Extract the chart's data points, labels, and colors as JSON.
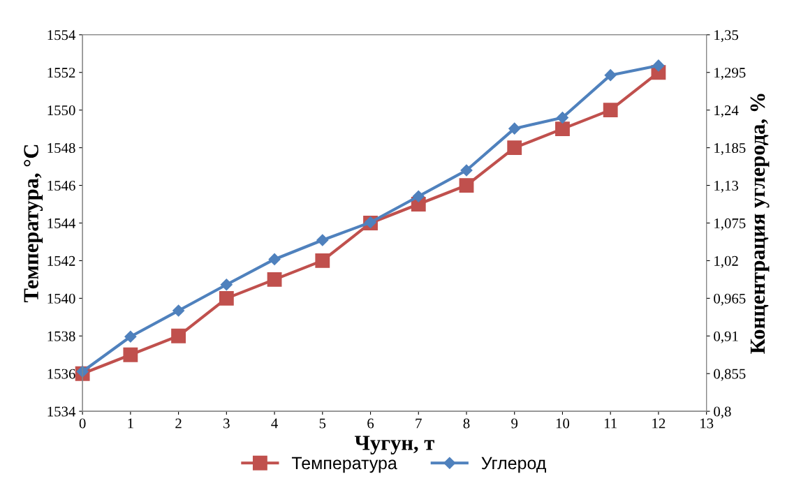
{
  "chart_data": {
    "type": "line",
    "xlabel": "Чугун, т",
    "ylabel": "Температура, °С",
    "y2label": "Концентрация углерода, %",
    "x": [
      0,
      1,
      2,
      3,
      4,
      5,
      6,
      7,
      8,
      9,
      10,
      11,
      12
    ],
    "series": [
      {
        "name": "Температура",
        "color": "#c0504d",
        "marker": "square",
        "values": [
          1536,
          1537,
          1538,
          1540,
          1541,
          1542,
          1544,
          1545,
          1546,
          1548,
          1549,
          1550,
          1552
        ]
      },
      {
        "name": "Углерод",
        "color": "#4f81bd",
        "marker": "diamond",
        "axis": "y2",
        "values": [
          0.858,
          0.909,
          0.947,
          0.985,
          1.022,
          1.05,
          1.076,
          1.114,
          1.152,
          1.213,
          1.229,
          1.291,
          1.305
        ]
      }
    ],
    "xlim": [
      0,
      13
    ],
    "xticks": [
      0,
      1,
      2,
      3,
      4,
      5,
      6,
      7,
      8,
      9,
      10,
      11,
      12,
      13
    ],
    "ylim": [
      1534,
      1554
    ],
    "yticks": [
      1534,
      1536,
      1538,
      1540,
      1542,
      1544,
      1546,
      1548,
      1550,
      1552,
      1554
    ],
    "y2lim": [
      0.8,
      1.35
    ],
    "y2ticks": [
      {
        "value": 0.8,
        "label": "0,8"
      },
      {
        "value": 0.855,
        "label": "0,855"
      },
      {
        "value": 0.91,
        "label": "0,91"
      },
      {
        "value": 0.965,
        "label": "0,965"
      },
      {
        "value": 1.02,
        "label": "1,02"
      },
      {
        "value": 1.075,
        "label": "1,075"
      },
      {
        "value": 1.13,
        "label": "1,13"
      },
      {
        "value": 1.185,
        "label": "1,185"
      },
      {
        "value": 1.24,
        "label": "1,24"
      },
      {
        "value": 1.295,
        "label": "1,295"
      },
      {
        "value": 1.35,
        "label": "1,35"
      }
    ],
    "grid": false,
    "legend": "bottom",
    "line_style": "solid"
  }
}
